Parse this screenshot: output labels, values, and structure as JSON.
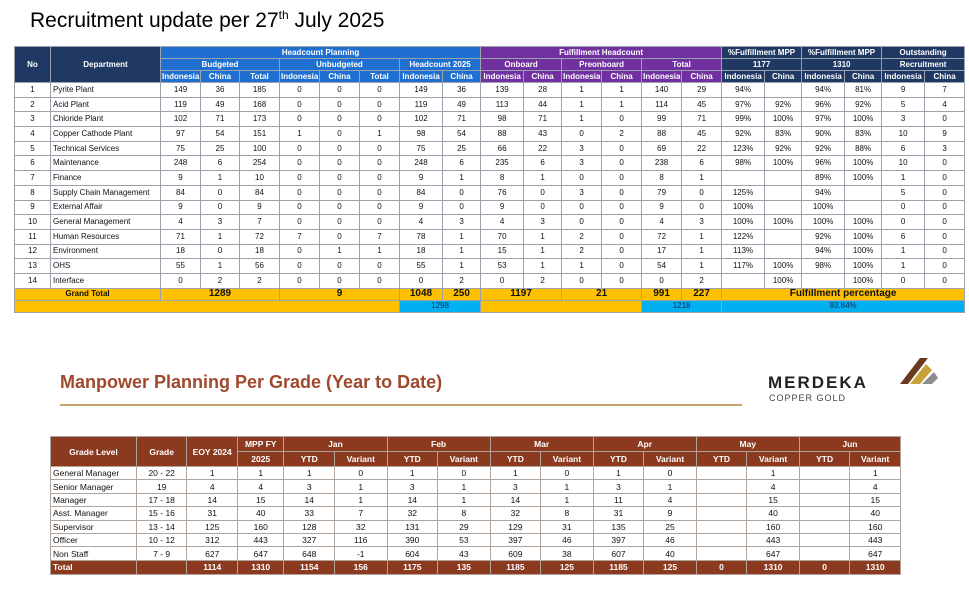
{
  "title": {
    "prefix": "Recruitment update per 27",
    "sup": "th",
    "suffix": " July 2025"
  },
  "recruitment": {
    "headers": {
      "no": "No",
      "department": "Department",
      "headcount_planning": "Headcount Planning",
      "fulfillment_headcount": "Fulfillment Headcount",
      "pct_1177_line1": "%Fulfillment MPP",
      "pct_1177_line2": "1177",
      "pct_1310_line1": "%Fulfillment MPP",
      "pct_1310_line2": "1310",
      "outstanding_line1": "Outstanding",
      "outstanding_line2": "Recruitment",
      "budgeted": "Budgeted",
      "unbudgeted": "Unbudgeted",
      "headcount_2025": "Headcount 2025",
      "onboard": "Onboard",
      "preonboard": "Preonboard",
      "total": "Total",
      "indonesia": "Indonesia",
      "china": "China"
    },
    "rows": [
      {
        "no": "1",
        "dept": "Pyrite Plant",
        "b_id": "149",
        "b_cn": "36",
        "b_tot": "185",
        "u_id": "0",
        "u_cn": "0",
        "u_tot": "0",
        "h_id": "149",
        "h_cn": "36",
        "o_id": "139",
        "o_cn": "28",
        "p_id": "1",
        "p_cn": "1",
        "t_id": "140",
        "t_cn": "29",
        "f1_id": "94%",
        "f1_cn": "",
        "f2_id": "94%",
        "f2_cn": "81%",
        "os_id": "9",
        "os_cn": "7"
      },
      {
        "no": "2",
        "dept": "Acid Plant",
        "b_id": "119",
        "b_cn": "49",
        "b_tot": "168",
        "u_id": "0",
        "u_cn": "0",
        "u_tot": "0",
        "h_id": "119",
        "h_cn": "49",
        "o_id": "113",
        "o_cn": "44",
        "p_id": "1",
        "p_cn": "1",
        "t_id": "114",
        "t_cn": "45",
        "f1_id": "97%",
        "f1_cn": "92%",
        "f2_id": "96%",
        "f2_cn": "92%",
        "os_id": "5",
        "os_cn": "4"
      },
      {
        "no": "3",
        "dept": "Chloride Plant",
        "b_id": "102",
        "b_cn": "71",
        "b_tot": "173",
        "u_id": "0",
        "u_cn": "0",
        "u_tot": "0",
        "h_id": "102",
        "h_cn": "71",
        "o_id": "98",
        "o_cn": "71",
        "p_id": "1",
        "p_cn": "0",
        "t_id": "99",
        "t_cn": "71",
        "f1_id": "99%",
        "f1_cn": "100%",
        "f2_id": "97%",
        "f2_cn": "100%",
        "os_id": "3",
        "os_cn": "0"
      },
      {
        "no": "4",
        "dept": "Copper Cathode Plant",
        "b_id": "97",
        "b_cn": "54",
        "b_tot": "151",
        "u_id": "1",
        "u_cn": "0",
        "u_tot": "1",
        "h_id": "98",
        "h_cn": "54",
        "o_id": "88",
        "o_cn": "43",
        "p_id": "0",
        "p_cn": "2",
        "t_id": "88",
        "t_cn": "45",
        "f1_id": "92%",
        "f1_cn": "83%",
        "f2_id": "90%",
        "f2_cn": "83%",
        "os_id": "10",
        "os_cn": "9"
      },
      {
        "no": "5",
        "dept": "Technical Services",
        "b_id": "75",
        "b_cn": "25",
        "b_tot": "100",
        "u_id": "0",
        "u_cn": "0",
        "u_tot": "0",
        "h_id": "75",
        "h_cn": "25",
        "o_id": "66",
        "o_cn": "22",
        "p_id": "3",
        "p_cn": "0",
        "t_id": "69",
        "t_cn": "22",
        "f1_id": "123%",
        "f1_cn": "92%",
        "f2_id": "92%",
        "f2_cn": "88%",
        "os_id": "6",
        "os_cn": "3"
      },
      {
        "no": "6",
        "dept": "Maintenance",
        "b_id": "248",
        "b_cn": "6",
        "b_tot": "254",
        "u_id": "0",
        "u_cn": "0",
        "u_tot": "0",
        "h_id": "248",
        "h_cn": "6",
        "o_id": "235",
        "o_cn": "6",
        "p_id": "3",
        "p_cn": "0",
        "t_id": "238",
        "t_cn": "6",
        "f1_id": "98%",
        "f1_cn": "100%",
        "f2_id": "96%",
        "f2_cn": "100%",
        "os_id": "10",
        "os_cn": "0"
      },
      {
        "no": "7",
        "dept": "Finance",
        "b_id": "9",
        "b_cn": "1",
        "b_tot": "10",
        "u_id": "0",
        "u_cn": "0",
        "u_tot": "0",
        "h_id": "9",
        "h_cn": "1",
        "o_id": "8",
        "o_cn": "1",
        "p_id": "0",
        "p_cn": "0",
        "t_id": "8",
        "t_cn": "1",
        "f1_id": "",
        "f1_cn": "",
        "f2_id": "89%",
        "f2_cn": "100%",
        "os_id": "1",
        "os_cn": "0"
      },
      {
        "no": "8",
        "dept": "Supply Chain Management",
        "b_id": "84",
        "b_cn": "0",
        "b_tot": "84",
        "u_id": "0",
        "u_cn": "0",
        "u_tot": "0",
        "h_id": "84",
        "h_cn": "0",
        "o_id": "76",
        "o_cn": "0",
        "p_id": "3",
        "p_cn": "0",
        "t_id": "79",
        "t_cn": "0",
        "f1_id": "125%",
        "f1_cn": "",
        "f2_id": "94%",
        "f2_cn": "",
        "os_id": "5",
        "os_cn": "0"
      },
      {
        "no": "9",
        "dept": "External Affair",
        "b_id": "9",
        "b_cn": "0",
        "b_tot": "9",
        "u_id": "0",
        "u_cn": "0",
        "u_tot": "0",
        "h_id": "9",
        "h_cn": "0",
        "o_id": "9",
        "o_cn": "0",
        "p_id": "0",
        "p_cn": "0",
        "t_id": "9",
        "t_cn": "0",
        "f1_id": "100%",
        "f1_cn": "",
        "f2_id": "100%",
        "f2_cn": "",
        "os_id": "0",
        "os_cn": "0"
      },
      {
        "no": "10",
        "dept": "General Management",
        "b_id": "4",
        "b_cn": "3",
        "b_tot": "7",
        "u_id": "0",
        "u_cn": "0",
        "u_tot": "0",
        "h_id": "4",
        "h_cn": "3",
        "o_id": "4",
        "o_cn": "3",
        "p_id": "0",
        "p_cn": "0",
        "t_id": "4",
        "t_cn": "3",
        "f1_id": "100%",
        "f1_cn": "100%",
        "f2_id": "100%",
        "f2_cn": "100%",
        "os_id": "0",
        "os_cn": "0"
      },
      {
        "no": "11",
        "dept": "Human Resources",
        "b_id": "71",
        "b_cn": "1",
        "b_tot": "72",
        "u_id": "7",
        "u_cn": "0",
        "u_tot": "7",
        "h_id": "78",
        "h_cn": "1",
        "o_id": "70",
        "o_cn": "1",
        "p_id": "2",
        "p_cn": "0",
        "t_id": "72",
        "t_cn": "1",
        "f1_id": "122%",
        "f1_cn": "",
        "f2_id": "92%",
        "f2_cn": "100%",
        "os_id": "6",
        "os_cn": "0"
      },
      {
        "no": "12",
        "dept": "Environment",
        "b_id": "18",
        "b_cn": "0",
        "b_tot": "18",
        "u_id": "0",
        "u_cn": "1",
        "u_tot": "1",
        "h_id": "18",
        "h_cn": "1",
        "o_id": "15",
        "o_cn": "1",
        "p_id": "2",
        "p_cn": "0",
        "t_id": "17",
        "t_cn": "1",
        "f1_id": "113%",
        "f1_cn": "",
        "f2_id": "94%",
        "f2_cn": "100%",
        "os_id": "1",
        "os_cn": "0"
      },
      {
        "no": "13",
        "dept": "OHS",
        "b_id": "55",
        "b_cn": "1",
        "b_tot": "56",
        "u_id": "0",
        "u_cn": "0",
        "u_tot": "0",
        "h_id": "55",
        "h_cn": "1",
        "o_id": "53",
        "o_cn": "1",
        "p_id": "1",
        "p_cn": "0",
        "t_id": "54",
        "t_cn": "1",
        "f1_id": "117%",
        "f1_cn": "100%",
        "f2_id": "98%",
        "f2_cn": "100%",
        "os_id": "1",
        "os_cn": "0"
      },
      {
        "no": "14",
        "dept": "Interface",
        "b_id": "0",
        "b_cn": "2",
        "b_tot": "2",
        "u_id": "0",
        "u_cn": "0",
        "u_tot": "0",
        "h_id": "0",
        "h_cn": "2",
        "o_id": "0",
        "o_cn": "2",
        "p_id": "0",
        "p_cn": "0",
        "t_id": "0",
        "t_cn": "2",
        "f1_id": "",
        "f1_cn": "100%",
        "f2_id": "",
        "f2_cn": "100%",
        "os_id": "0",
        "os_cn": "0"
      }
    ],
    "grand_total": {
      "label": "Grand Total",
      "budgeted": "1289",
      "unbudgeted": "9",
      "hc_id": "1048",
      "hc_cn": "250",
      "onboard": "1197",
      "preonboard": "21",
      "tot_id": "991",
      "tot_cn": "227",
      "fulfillment_label": "Fulfillment percentage"
    },
    "summary": {
      "headcount_total": "1298",
      "fulfilled_total": "1218",
      "fulfillment_pct": "93.84%"
    }
  },
  "manpower": {
    "title": "Manpower Planning Per Grade (Year to Date)",
    "headers": {
      "grade_level": "Grade Level",
      "grade": "Grade",
      "eoy": "EOY 2024",
      "mpp_line1": "MPP FY",
      "mpp_line2": "2025",
      "months": [
        "Jan",
        "Feb",
        "Mar",
        "Apr",
        "May",
        "Jun"
      ],
      "ytd": "YTD",
      "variant": "Variant"
    },
    "rows": [
      {
        "level": "General Manager",
        "grade": "20 - 22",
        "eoy": "1",
        "mpp": "1",
        "jan_ytd": "1",
        "jan_var": "0",
        "feb_ytd": "1",
        "feb_var": "0",
        "mar_ytd": "1",
        "mar_var": "0",
        "apr_ytd": "1",
        "apr_var": "0",
        "may_ytd": "",
        "may_var": "1",
        "jun_ytd": "",
        "jun_var": "1"
      },
      {
        "level": "Senior Manager",
        "grade": "19",
        "eoy": "4",
        "mpp": "4",
        "jan_ytd": "3",
        "jan_var": "1",
        "feb_ytd": "3",
        "feb_var": "1",
        "mar_ytd": "3",
        "mar_var": "1",
        "apr_ytd": "3",
        "apr_var": "1",
        "may_ytd": "",
        "may_var": "4",
        "jun_ytd": "",
        "jun_var": "4"
      },
      {
        "level": "Manager",
        "grade": "17 - 18",
        "eoy": "14",
        "mpp": "15",
        "jan_ytd": "14",
        "jan_var": "1",
        "feb_ytd": "14",
        "feb_var": "1",
        "mar_ytd": "14",
        "mar_var": "1",
        "apr_ytd": "11",
        "apr_var": "4",
        "may_ytd": "",
        "may_var": "15",
        "jun_ytd": "",
        "jun_var": "15"
      },
      {
        "level": "Asst. Manager",
        "grade": "15 - 16",
        "eoy": "31",
        "mpp": "40",
        "jan_ytd": "33",
        "jan_var": "7",
        "feb_ytd": "32",
        "feb_var": "8",
        "mar_ytd": "32",
        "mar_var": "8",
        "apr_ytd": "31",
        "apr_var": "9",
        "may_ytd": "",
        "may_var": "40",
        "jun_ytd": "",
        "jun_var": "40"
      },
      {
        "level": "Supervisor",
        "grade": "13 - 14",
        "eoy": "125",
        "mpp": "160",
        "jan_ytd": "128",
        "jan_var": "32",
        "feb_ytd": "131",
        "feb_var": "29",
        "mar_ytd": "129",
        "mar_var": "31",
        "apr_ytd": "135",
        "apr_var": "25",
        "may_ytd": "",
        "may_var": "160",
        "jun_ytd": "",
        "jun_var": "160"
      },
      {
        "level": "Officer",
        "grade": "10 - 12",
        "eoy": "312",
        "mpp": "443",
        "jan_ytd": "327",
        "jan_var": "116",
        "feb_ytd": "390",
        "feb_var": "53",
        "mar_ytd": "397",
        "mar_var": "46",
        "apr_ytd": "397",
        "apr_var": "46",
        "may_ytd": "",
        "may_var": "443",
        "jun_ytd": "",
        "jun_var": "443"
      },
      {
        "level": "Non Staff",
        "grade": "7 - 9",
        "eoy": "627",
        "mpp": "647",
        "jan_ytd": "648",
        "jan_var": "-1",
        "feb_ytd": "604",
        "feb_var": "43",
        "mar_ytd": "609",
        "mar_var": "38",
        "apr_ytd": "607",
        "apr_var": "40",
        "may_ytd": "",
        "may_var": "647",
        "jun_ytd": "",
        "jun_var": "647"
      }
    ],
    "total": {
      "level": "Total",
      "grade": "",
      "eoy": "1114",
      "mpp": "1310",
      "jan_ytd": "1154",
      "jan_var": "156",
      "feb_ytd": "1175",
      "feb_var": "135",
      "mar_ytd": "1185",
      "mar_var": "125",
      "apr_ytd": "1185",
      "apr_var": "125",
      "may_ytd": "0",
      "may_var": "1310",
      "jun_ytd": "0",
      "jun_var": "1310"
    }
  },
  "logo": {
    "name": "MERDEKA",
    "sub": "COPPER GOLD",
    "colors": {
      "dark": "#6b3a1f",
      "gold": "#c9a13b",
      "grey": "#8c8c8c"
    }
  }
}
